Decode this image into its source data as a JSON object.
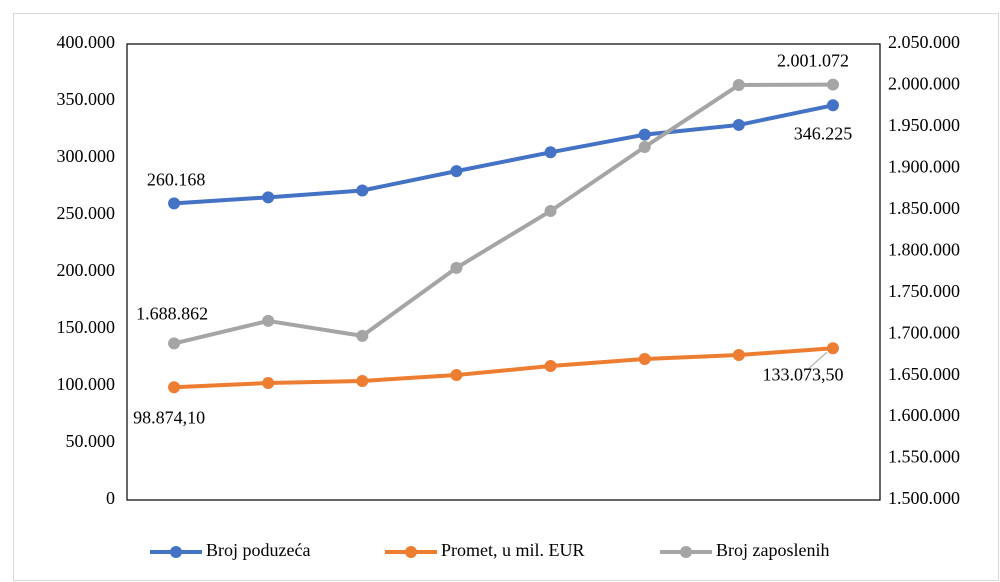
{
  "chart_data": {
    "type": "line",
    "categories": [
      null,
      null,
      null,
      null,
      null,
      null,
      null,
      null
    ],
    "series": [
      {
        "name": "Broj poduzeća",
        "color": "#4472c4",
        "values": [
          260168,
          265500,
          271500,
          288500,
          305000,
          320500,
          329000,
          346225
        ],
        "value_labels": [
          "260.168",
          null,
          null,
          null,
          null,
          null,
          null,
          "346.225"
        ]
      },
      {
        "name": "Promet, u mil. EUR",
        "color": "#ed7d31",
        "values": [
          98874.1,
          102600,
          104400,
          109600,
          117500,
          123700,
          127200,
          133073.5
        ],
        "value_labels": [
          "98.874,10",
          null,
          null,
          null,
          null,
          null,
          null,
          "133.073,50"
        ]
      },
      {
        "name": "Broj zaposlenih",
        "color": "#a5a5a5",
        "axis": "y2",
        "values": [
          1688862,
          1716000,
          1698000,
          1780000,
          1848600,
          1925800,
          2000500,
          2001072
        ],
        "value_labels": [
          "1.688.862",
          null,
          null,
          null,
          null,
          null,
          null,
          "2.001.072"
        ]
      }
    ],
    "ylim": [
      0,
      400000
    ],
    "yticks": [
      0,
      {
        "value": 50000,
        "label": "50.000"
      },
      {
        "value": 100000,
        "label": "100.000"
      },
      {
        "value": 150000,
        "label": "150.000"
      },
      {
        "value": 200000,
        "label": "200.000"
      },
      {
        "value": 250000,
        "label": "250.000"
      },
      {
        "value": 300000,
        "label": "300.000"
      },
      {
        "value": 350000,
        "label": "350.000"
      },
      {
        "value": 400000,
        "label": "400.000"
      }
    ],
    "y2lim": [
      1500000,
      2050000
    ],
    "y2ticks": [
      {
        "value": 1500000,
        "label": "1.500.000"
      },
      {
        "value": 1550000,
        "label": "1.550.000"
      },
      {
        "value": 1600000,
        "label": "1.600.000"
      },
      {
        "value": 1650000,
        "label": "1.650.000"
      },
      {
        "value": 1700000,
        "label": "1.700.000"
      },
      {
        "value": 1750000,
        "label": "1.750.000"
      },
      {
        "value": 1800000,
        "label": "1.800.000"
      },
      {
        "value": 1850000,
        "label": "1.850.000"
      },
      {
        "value": 1900000,
        "label": "1.900.000"
      },
      {
        "value": 1950000,
        "label": "1.950.000"
      },
      {
        "value": 2000000,
        "label": "2.000.000"
      },
      {
        "value": 2050000,
        "label": "2.050.000"
      }
    ],
    "grid": false,
    "legend": "bottom"
  }
}
